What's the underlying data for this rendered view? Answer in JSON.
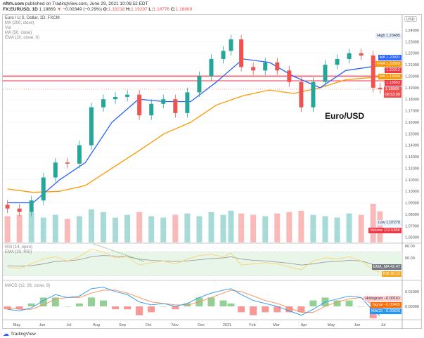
{
  "header": {
    "publisher": "nftrh.com",
    "published_text": "published on TradingView.com, June 29, 2021 10:06:52 EDT",
    "symbol": "FX:EURUSD, 1D",
    "last": "1.18869",
    "change": "−0.00349 (−0.29%)",
    "ohlc": {
      "o_label": "O:",
      "o": "1.19218",
      "h_label": "H:",
      "h": "1.19297",
      "l_label": "L:",
      "l": "1.18776",
      "c_label": "C:",
      "c": "1.18869"
    }
  },
  "legend": {
    "main": "Euro / U.S. Dollar, 1D, FXCM",
    "ma200": "MA (200, close)",
    "vol": "Vol",
    "ma50": "MA (50, close)",
    "ema20": "EMA (20, close, 0)",
    "rsi": "RSI (14, open)",
    "rsi_ema": "EMA (20, RSI)",
    "macd": "MACD (12, 26, close, 9)"
  },
  "annotation": "Euro/USD",
  "price_axis": {
    "currency": "USD",
    "ticks": [
      "1.24000",
      "1.23000",
      "1.22000",
      "1.21000",
      "1.20000",
      "1.19000",
      "1.18000",
      "1.17000",
      "1.16000",
      "1.15000",
      "1.14000",
      "1.13000",
      "1.12000",
      "1.11000",
      "1.10000",
      "1.09000",
      "1.08000",
      "1.07000",
      "1.06000"
    ]
  },
  "price_tags": [
    {
      "label": "High",
      "value": "1.23495",
      "color": "#e3effd",
      "text": "#333"
    },
    {
      "label": "MA",
      "value": "1.20931",
      "color": "#2962ff",
      "text": "#fff"
    },
    {
      "label": "EMA",
      "value": "1.20059",
      "color": "#ff9800",
      "text": "#fff"
    },
    {
      "label": "",
      "value": "1.20012",
      "color": "#f23645",
      "text": "#fff"
    },
    {
      "label": "MA",
      "value": "1.19946",
      "color": "#ff9800",
      "text": "#fff"
    },
    {
      "label": "",
      "value": "1.19603",
      "color": "#f23645",
      "text": "#fff"
    },
    {
      "label": "",
      "value": "1.18869",
      "sub": "06:53:09",
      "color": "#ef5350",
      "text": "#fff"
    },
    {
      "label": "Low",
      "value": "1.07270",
      "color": "#e3effd",
      "text": "#333"
    },
    {
      "label": "Volume",
      "value": "112.538K",
      "color": "#f23645",
      "text": "#fff"
    }
  ],
  "rsi_axis": {
    "ticks": [
      "80.00",
      "60.00"
    ]
  },
  "rsi_tags": [
    {
      "label": "EMA_MA",
      "value": "42.47",
      "color": "#787b86"
    },
    {
      "label": "RSI",
      "value": "36.12",
      "color": "#f9a825"
    }
  ],
  "macd_axis": {
    "ticks": [
      "0.01000",
      "0.00000"
    ]
  },
  "macd_tags": [
    {
      "label": "Histogram",
      "value": "−0.00161",
      "color": "#ffcdd2",
      "text": "#333"
    },
    {
      "label": "Signal",
      "value": "−0.00465",
      "color": "#ff6d00",
      "text": "#fff"
    },
    {
      "label": "MACD",
      "value": "−0.00626",
      "color": "#2196f3",
      "text": "#fff"
    }
  ],
  "footer": {
    "brand": "TradingView"
  },
  "colors": {
    "up": "#26a69a",
    "down": "#ef5350",
    "ma50": "#2962ff",
    "ma200": "#ff9800",
    "ema20": "#ffb74d",
    "rsi": "#f9d56e",
    "rsi_ema": "#9e9e9e",
    "macd": "#2196f3",
    "signal": "#ff8a50",
    "level": "#f23645"
  },
  "chart_data": {
    "type": "candlestick",
    "title": "Euro / U.S. Dollar, 1D, FXCM",
    "x_ticks": [
      "May",
      "Jun",
      "Jul",
      "Aug",
      "Sep",
      "Oct",
      "Nov",
      "Dec",
      "2021",
      "Feb",
      "Mar",
      "Apr",
      "May",
      "Jun",
      "Jul"
    ],
    "ylim": [
      1.06,
      1.245
    ],
    "dates": [
      "2020-04-20",
      "2020-05-04",
      "2020-05-18",
      "2020-06-01",
      "2020-06-15",
      "2020-06-29",
      "2020-07-13",
      "2020-07-27",
      "2020-08-10",
      "2020-08-24",
      "2020-09-07",
      "2020-09-21",
      "2020-10-05",
      "2020-10-19",
      "2020-11-02",
      "2020-11-16",
      "2020-11-30",
      "2020-12-14",
      "2020-12-28",
      "2021-01-06",
      "2021-01-18",
      "2021-02-01",
      "2021-02-15",
      "2021-03-01",
      "2021-03-15",
      "2021-03-29",
      "2021-04-12",
      "2021-04-26",
      "2021-05-10",
      "2021-05-24",
      "2021-06-07",
      "2021-06-21",
      "2021-06-29"
    ],
    "close": [
      1.085,
      1.082,
      1.092,
      1.112,
      1.125,
      1.124,
      1.14,
      1.173,
      1.18,
      1.182,
      1.184,
      1.166,
      1.176,
      1.18,
      1.168,
      1.186,
      1.2,
      1.215,
      1.222,
      1.232,
      1.208,
      1.205,
      1.212,
      1.205,
      1.195,
      1.173,
      1.195,
      1.21,
      1.215,
      1.22,
      1.218,
      1.19,
      1.1887
    ],
    "volume_k": [
      95,
      100,
      110,
      90,
      100,
      85,
      95,
      120,
      110,
      90,
      100,
      110,
      95,
      90,
      100,
      105,
      95,
      110,
      100,
      115,
      105,
      100,
      95,
      105,
      110,
      115,
      100,
      95,
      90,
      105,
      100,
      140,
      112.5
    ],
    "ma_dates": [
      "2020-04-20",
      "2020-05-20",
      "2020-06-20",
      "2020-07-20",
      "2020-08-20",
      "2020-09-20",
      "2020-10-20",
      "2020-11-20",
      "2020-12-20",
      "2021-01-20",
      "2021-02-20",
      "2021-03-20",
      "2021-04-20",
      "2021-05-20",
      "2021-06-29"
    ],
    "ma200": [
      1.102,
      1.099,
      1.1,
      1.105,
      1.12,
      1.135,
      1.15,
      1.16,
      1.175,
      1.183,
      1.188,
      1.185,
      1.19,
      1.197,
      1.1995
    ],
    "ma50": [
      1.09,
      1.09,
      1.11,
      1.125,
      1.16,
      1.18,
      1.178,
      1.178,
      1.195,
      1.215,
      1.212,
      1.2,
      1.19,
      1.205,
      1.2093
    ],
    "levels": [
      1.20012,
      1.19603
    ],
    "rsi": [
      45,
      42,
      50,
      58,
      62,
      55,
      62,
      75,
      70,
      60,
      62,
      48,
      52,
      55,
      50,
      58,
      64,
      66,
      62,
      68,
      48,
      50,
      52,
      50,
      45,
      40,
      55,
      60,
      58,
      62,
      55,
      40,
      36.12
    ],
    "rsi_ema": [
      47,
      46,
      47,
      50,
      54,
      55,
      57,
      62,
      64,
      63,
      62,
      58,
      56,
      55,
      54,
      55,
      57,
      59,
      60,
      62,
      58,
      56,
      55,
      53,
      51,
      48,
      50,
      53,
      54,
      56,
      55,
      49,
      42.47
    ],
    "macd": [
      -0.002,
      -0.003,
      -0.001,
      0.004,
      0.008,
      0.006,
      0.007,
      0.012,
      0.013,
      0.01,
      0.008,
      0.003,
      0.001,
      0.002,
      0.0,
      0.002,
      0.006,
      0.009,
      0.011,
      0.012,
      0.008,
      0.004,
      0.002,
      0.0,
      -0.003,
      -0.006,
      -0.002,
      0.003,
      0.005,
      0.007,
      0.006,
      -0.003,
      -0.00626
    ],
    "signal": [
      -0.001,
      -0.002,
      -0.002,
      0.001,
      0.005,
      0.006,
      0.006,
      0.009,
      0.011,
      0.011,
      0.009,
      0.006,
      0.003,
      0.002,
      0.001,
      0.001,
      0.003,
      0.006,
      0.009,
      0.011,
      0.01,
      0.007,
      0.004,
      0.002,
      -0.001,
      -0.004,
      -0.004,
      0.0,
      0.003,
      0.005,
      0.006,
      0.001,
      -0.00465
    ]
  }
}
